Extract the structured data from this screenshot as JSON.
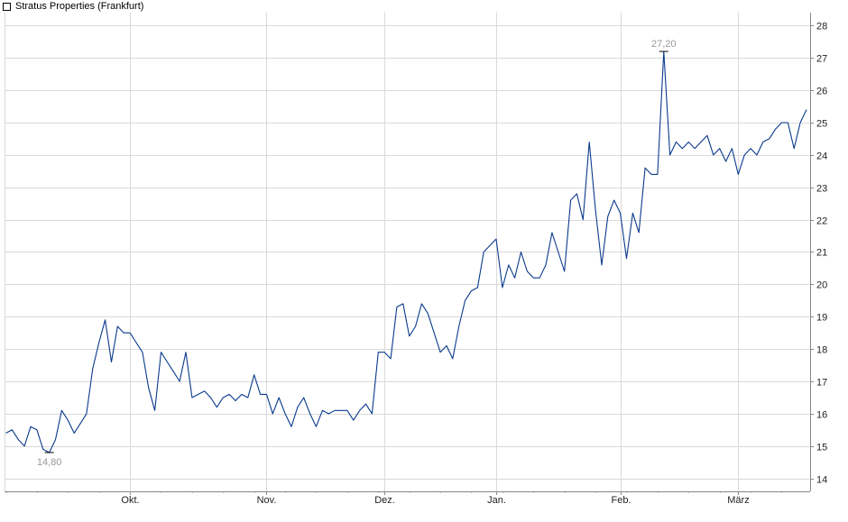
{
  "chart_data": {
    "type": "line",
    "title": "",
    "xlabel": "",
    "ylabel": "",
    "ylim": [
      13.6,
      28.4
    ],
    "y_ticks": [
      14,
      15,
      16,
      17,
      18,
      19,
      20,
      21,
      22,
      23,
      24,
      25,
      26,
      27,
      28
    ],
    "x_ticks": [
      {
        "label": "Okt.",
        "index": 20
      },
      {
        "label": "Nov.",
        "index": 42
      },
      {
        "label": "Dez.",
        "index": 61
      },
      {
        "label": "Jan.",
        "index": 79
      },
      {
        "label": "Feb.",
        "index": 99
      },
      {
        "label": "März",
        "index": 118
      }
    ],
    "grid": true,
    "legend_position": "top-left",
    "colors": {
      "series": "#0a3a8c",
      "grid": "#d9d9d9",
      "annotation": "#999999"
    },
    "series": [
      {
        "name": "Stratus Properties (Frankfurt)",
        "values": [
          15.4,
          15.5,
          15.2,
          15.0,
          15.6,
          15.5,
          14.9,
          14.8,
          15.2,
          16.1,
          15.8,
          15.4,
          15.7,
          16.0,
          17.4,
          18.2,
          18.9,
          17.6,
          18.7,
          18.5,
          18.5,
          18.2,
          17.9,
          16.8,
          16.1,
          17.9,
          17.6,
          17.3,
          17.0,
          17.9,
          16.5,
          16.6,
          16.7,
          16.5,
          16.2,
          16.5,
          16.6,
          16.4,
          16.6,
          16.5,
          17.2,
          16.6,
          16.6,
          16.0,
          16.5,
          16.0,
          15.6,
          16.2,
          16.5,
          16.0,
          15.6,
          16.1,
          16.0,
          16.1,
          16.1,
          16.1,
          15.8,
          16.1,
          16.3,
          16.0,
          17.9,
          17.9,
          17.7,
          19.3,
          19.4,
          18.4,
          18.7,
          19.4,
          19.1,
          18.5,
          17.9,
          18.1,
          17.7,
          18.7,
          19.5,
          19.8,
          19.9,
          21.0,
          21.2,
          21.4,
          19.9,
          20.6,
          20.2,
          21.0,
          20.4,
          20.2,
          20.2,
          20.6,
          21.6,
          21.0,
          20.4,
          22.6,
          22.8,
          22.0,
          24.4,
          22.3,
          20.6,
          22.1,
          22.6,
          22.2,
          20.8,
          22.2,
          21.6,
          23.6,
          23.4,
          23.4,
          27.2,
          24.0,
          24.4,
          24.2,
          24.4,
          24.2,
          24.4,
          24.6,
          24.0,
          24.2,
          23.8,
          24.2,
          23.4,
          24.0,
          24.2,
          24.0,
          24.4,
          24.5,
          24.8,
          25.0,
          25.0,
          24.2,
          25.0,
          25.4
        ]
      }
    ],
    "annotations": [
      {
        "label": "27,20",
        "index": 106,
        "value": 27.2
      },
      {
        "label": "14,80",
        "index": 7,
        "value": 14.8
      }
    ]
  }
}
